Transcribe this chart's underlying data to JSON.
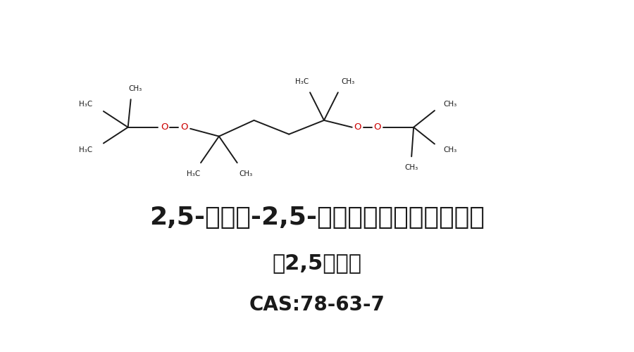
{
  "bg_color": "#ffffff",
  "bond_color": "#1a1a1a",
  "oxygen_color": "#cc0000",
  "label_color": "#1a1a1a",
  "title1": "2,5-二甲基-2,5-双（叔丁基过氧基）己烷",
  "title2": "双2,5硫化剂",
  "title3": "CAS:78-63-7",
  "title1_size": 26,
  "title2_size": 22,
  "title3_size": 20,
  "group_label_size": 7.5,
  "fig_width": 9.0,
  "fig_height": 5.0
}
